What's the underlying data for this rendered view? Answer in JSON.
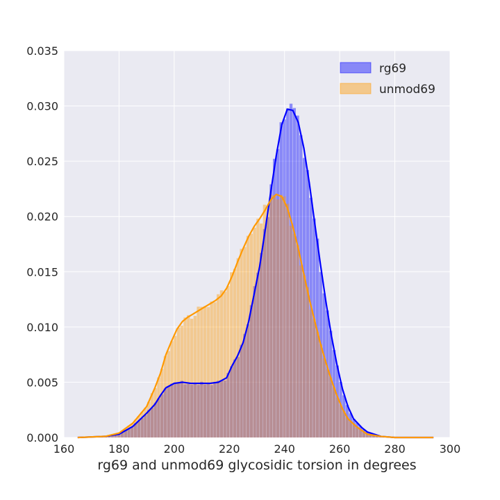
{
  "chart_data": {
    "type": "bar",
    "subtype": "histogram-with-kde",
    "title": "",
    "xlabel": "rg69 and unmod69 glycosidic torsion in degrees",
    "ylabel": "",
    "xlim": [
      160,
      300
    ],
    "ylim": [
      0,
      0.035
    ],
    "xticks": [
      "160",
      "180",
      "200",
      "220",
      "240",
      "260",
      "280",
      "300"
    ],
    "yticks": [
      "0.000",
      "0.005",
      "0.010",
      "0.015",
      "0.020",
      "0.025",
      "0.030",
      "0.035"
    ],
    "grid": true,
    "legend_position": "top-right",
    "series": [
      {
        "name": "rg69",
        "color": "#0000ff",
        "kde": [
          [
            165,
            0.0
          ],
          [
            175,
            0.0001
          ],
          [
            180,
            0.0003
          ],
          [
            185,
            0.001
          ],
          [
            190,
            0.0022
          ],
          [
            193,
            0.003
          ],
          [
            195,
            0.0038
          ],
          [
            197,
            0.0045
          ],
          [
            200,
            0.0049
          ],
          [
            203,
            0.005
          ],
          [
            206,
            0.0049
          ],
          [
            210,
            0.0049
          ],
          [
            213,
            0.0049
          ],
          [
            216,
            0.005
          ],
          [
            219,
            0.0054
          ],
          [
            221,
            0.0065
          ],
          [
            223,
            0.0074
          ],
          [
            225,
            0.0086
          ],
          [
            227,
            0.0105
          ],
          [
            229,
            0.013
          ],
          [
            231,
            0.0155
          ],
          [
            233,
            0.0188
          ],
          [
            235,
            0.0222
          ],
          [
            237,
            0.0255
          ],
          [
            239,
            0.0283
          ],
          [
            241,
            0.0297
          ],
          [
            243,
            0.0296
          ],
          [
            245,
            0.0285
          ],
          [
            247,
            0.0262
          ],
          [
            249,
            0.023
          ],
          [
            251,
            0.0193
          ],
          [
            253,
            0.0157
          ],
          [
            255,
            0.0123
          ],
          [
            257,
            0.0092
          ],
          [
            259,
            0.0066
          ],
          [
            261,
            0.0044
          ],
          [
            263,
            0.0028
          ],
          [
            265,
            0.0017
          ],
          [
            268,
            0.0009
          ],
          [
            270,
            0.0005
          ],
          [
            275,
            0.0001
          ],
          [
            280,
            0.0
          ],
          [
            294,
            0.0
          ]
        ]
      },
      {
        "name": "unmod69",
        "color": "#ff9900",
        "kde": [
          [
            165,
            0.0
          ],
          [
            175,
            0.0001
          ],
          [
            180,
            0.0004
          ],
          [
            185,
            0.0013
          ],
          [
            190,
            0.0028
          ],
          [
            193,
            0.0045
          ],
          [
            195,
            0.0058
          ],
          [
            197,
            0.0075
          ],
          [
            199,
            0.0087
          ],
          [
            201,
            0.0098
          ],
          [
            203,
            0.0105
          ],
          [
            205,
            0.0109
          ],
          [
            207,
            0.0112
          ],
          [
            209,
            0.0115
          ],
          [
            211,
            0.0118
          ],
          [
            213,
            0.0121
          ],
          [
            215,
            0.0124
          ],
          [
            217,
            0.0128
          ],
          [
            219,
            0.0135
          ],
          [
            221,
            0.0146
          ],
          [
            223,
            0.0159
          ],
          [
            225,
            0.0171
          ],
          [
            227,
            0.0182
          ],
          [
            229,
            0.0191
          ],
          [
            231,
            0.0198
          ],
          [
            233,
            0.0206
          ],
          [
            235,
            0.0215
          ],
          [
            237,
            0.022
          ],
          [
            239,
            0.0218
          ],
          [
            241,
            0.0208
          ],
          [
            243,
            0.0191
          ],
          [
            245,
            0.0171
          ],
          [
            247,
            0.0148
          ],
          [
            249,
            0.0125
          ],
          [
            251,
            0.0105
          ],
          [
            253,
            0.0085
          ],
          [
            255,
            0.0068
          ],
          [
            257,
            0.0052
          ],
          [
            259,
            0.0038
          ],
          [
            261,
            0.0026
          ],
          [
            263,
            0.0017
          ],
          [
            266,
            0.001
          ],
          [
            270,
            0.0003
          ],
          [
            275,
            0.0001
          ],
          [
            280,
            0.0
          ],
          [
            294,
            0.0
          ]
        ]
      }
    ]
  }
}
